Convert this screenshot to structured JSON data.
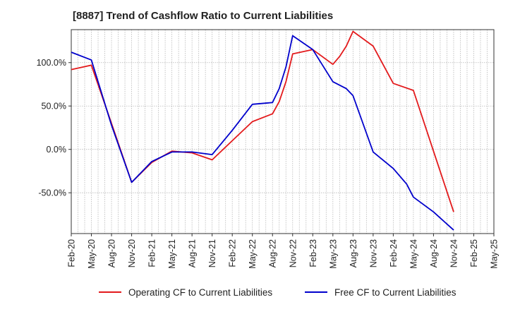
{
  "chart_data": {
    "type": "line",
    "title": "[8887]  Trend of Cashflow Ratio to Current Liabilities",
    "xlabel": "",
    "ylabel": "",
    "x_ticks": [
      "Feb-20",
      "May-20",
      "Aug-20",
      "Nov-20",
      "Feb-21",
      "May-21",
      "Aug-21",
      "Nov-21",
      "Feb-22",
      "May-22",
      "Aug-22",
      "Nov-22",
      "Feb-23",
      "May-23",
      "Aug-23",
      "Nov-23",
      "Feb-24",
      "May-24",
      "Aug-24",
      "Nov-24",
      "Feb-25",
      "May-25"
    ],
    "x_range": [
      "Feb-20",
      "May-25"
    ],
    "y_ticks": [
      {
        "value": 100,
        "label": "100.0%"
      },
      {
        "value": 50,
        "label": "50.0%"
      },
      {
        "value": 0,
        "label": "0.0%"
      },
      {
        "value": -50,
        "label": "-50.0%"
      }
    ],
    "ylim": [
      -97,
      138
    ],
    "grid": true,
    "legend_position": "bottom",
    "series": [
      {
        "name": "Operating CF to Current Liabilities",
        "color": "#e31a1c",
        "points": [
          [
            "Feb-20",
            92
          ],
          [
            "May-20",
            97
          ],
          [
            "Aug-20",
            30
          ],
          [
            "Nov-20",
            -38
          ],
          [
            "Feb-21",
            -15
          ],
          [
            "May-21",
            -2
          ],
          [
            "Aug-21",
            -4
          ],
          [
            "Nov-21",
            -12
          ],
          [
            "Feb-22",
            10
          ],
          [
            "May-22",
            32
          ],
          [
            "Aug-22",
            41
          ],
          [
            "Sep-22",
            55
          ],
          [
            "Oct-22",
            78
          ],
          [
            "Nov-22",
            110
          ],
          [
            "Feb-23",
            115
          ],
          [
            "May-23",
            98
          ],
          [
            "Jun-23",
            107
          ],
          [
            "Jul-23",
            119
          ],
          [
            "Aug-23",
            136
          ],
          [
            "Nov-23",
            119
          ],
          [
            "Feb-24",
            76
          ],
          [
            "May-24",
            68
          ],
          [
            "Aug-24",
            -2
          ],
          [
            "Nov-24",
            -72
          ]
        ]
      },
      {
        "name": "Free CF to Current Liabilities",
        "color": "#0000cc",
        "points": [
          [
            "Feb-20",
            112
          ],
          [
            "May-20",
            103
          ],
          [
            "Aug-20",
            28
          ],
          [
            "Nov-20",
            -38
          ],
          [
            "Feb-21",
            -14
          ],
          [
            "May-21",
            -3
          ],
          [
            "Aug-21",
            -3
          ],
          [
            "Nov-21",
            -6
          ],
          [
            "Feb-22",
            22
          ],
          [
            "May-22",
            52
          ],
          [
            "Aug-22",
            54
          ],
          [
            "Sep-22",
            70
          ],
          [
            "Oct-22",
            95
          ],
          [
            "Nov-22",
            131
          ],
          [
            "Feb-23",
            115
          ],
          [
            "May-23",
            78
          ],
          [
            "Jul-23",
            70
          ],
          [
            "Aug-23",
            62
          ],
          [
            "Nov-23",
            -3
          ],
          [
            "Feb-24",
            -22
          ],
          [
            "Apr-24",
            -40
          ],
          [
            "May-24",
            -55
          ],
          [
            "Aug-24",
            -72
          ],
          [
            "Nov-24",
            -93
          ]
        ]
      }
    ]
  }
}
